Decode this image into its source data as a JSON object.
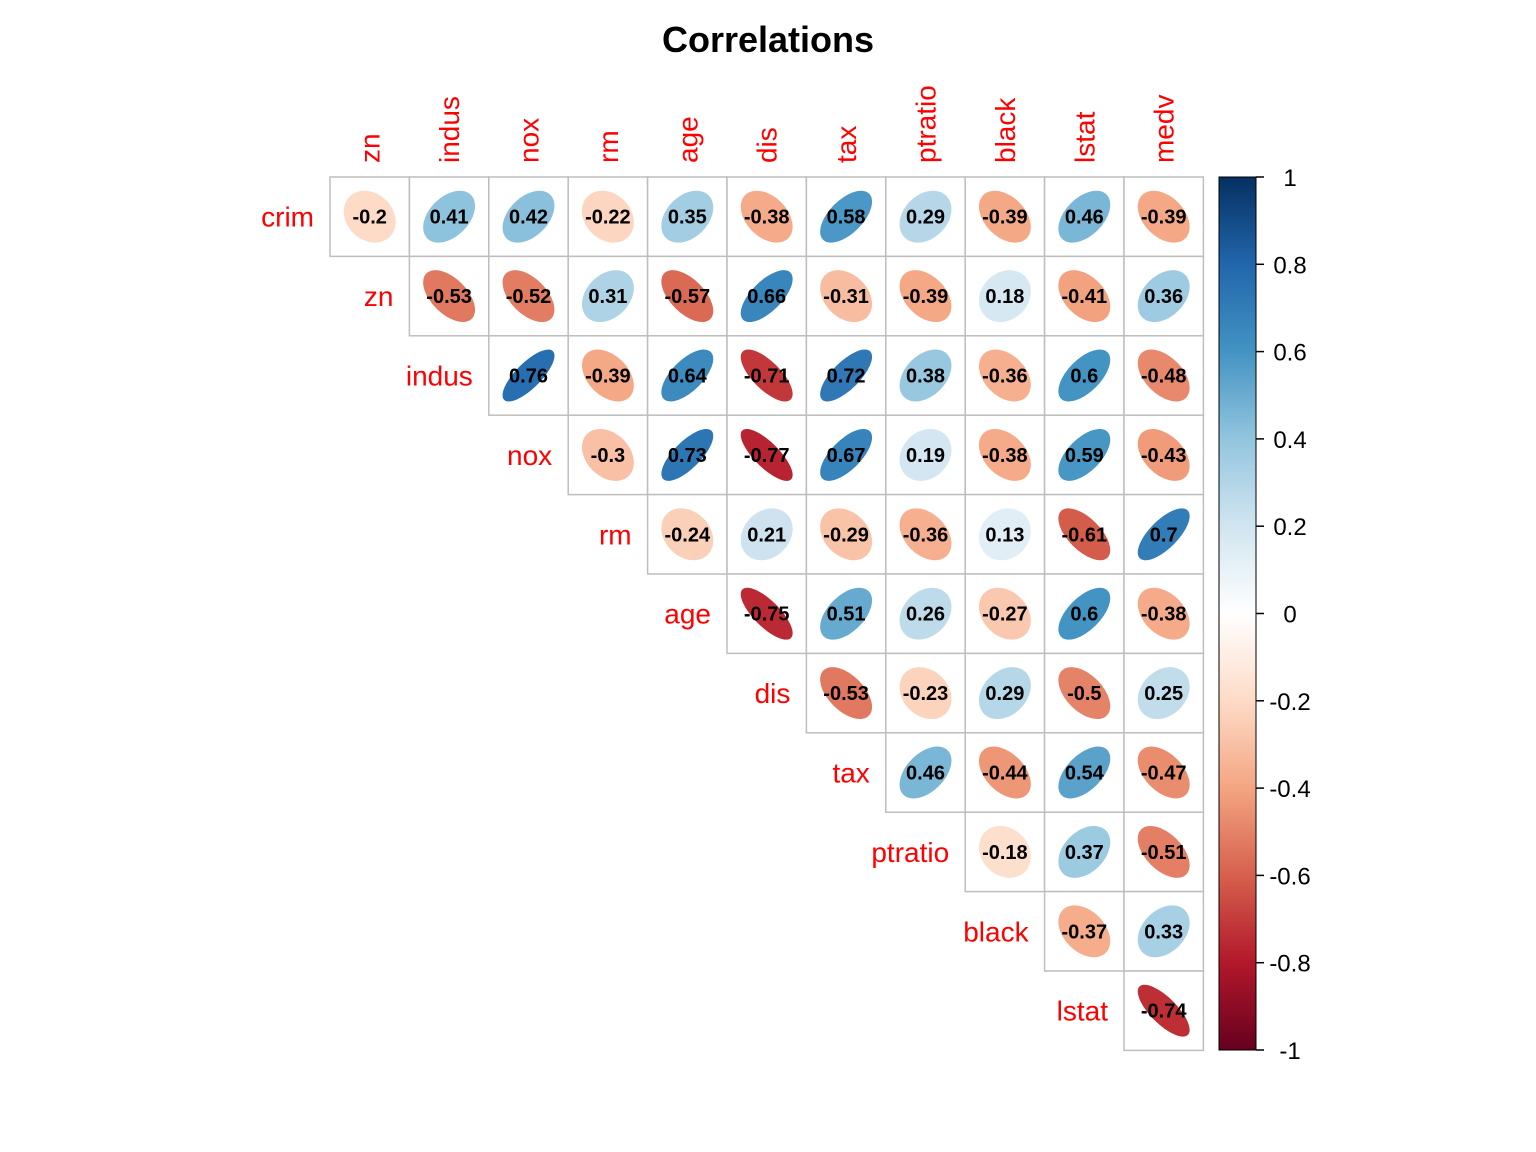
{
  "chart_data": {
    "type": "heatmap",
    "title": "Correlations",
    "row_labels": [
      "crim",
      "zn",
      "indus",
      "nox",
      "rm",
      "age",
      "dis",
      "tax",
      "ptratio",
      "black",
      "lstat"
    ],
    "col_labels": [
      "zn",
      "indus",
      "nox",
      "rm",
      "age",
      "dis",
      "tax",
      "ptratio",
      "black",
      "lstat",
      "medv"
    ],
    "variables": [
      "crim",
      "zn",
      "indus",
      "nox",
      "rm",
      "age",
      "dis",
      "tax",
      "ptratio",
      "black",
      "lstat",
      "medv"
    ],
    "layout": "upper-triangle",
    "glyph": "ellipse",
    "matrix": [
      [
        "-0.2",
        "0.41",
        "0.42",
        "-0.22",
        "0.35",
        "-0.38",
        "0.58",
        "0.29",
        "-0.39",
        "0.46",
        "-0.39"
      ],
      [
        "-0.53",
        "-0.52",
        "0.31",
        "-0.57",
        "0.66",
        "-0.31",
        "-0.39",
        "0.18",
        "-0.41",
        "0.36"
      ],
      [
        "0.76",
        "-0.39",
        "0.64",
        "-0.71",
        "0.72",
        "0.38",
        "-0.36",
        "0.6",
        "-0.48"
      ],
      [
        "-0.3",
        "0.73",
        "-0.77",
        "0.67",
        "0.19",
        "-0.38",
        "0.59",
        "-0.43"
      ],
      [
        "-0.24",
        "0.21",
        "-0.29",
        "-0.36",
        "0.13",
        "-0.61",
        "0.7"
      ],
      [
        "-0.75",
        "0.51",
        "0.26",
        "-0.27",
        "0.6",
        "-0.38"
      ],
      [
        "-0.53",
        "-0.23",
        "0.29",
        "-0.5",
        "0.25"
      ],
      [
        "0.46",
        "-0.44",
        "0.54",
        "-0.47"
      ],
      [
        "-0.18",
        "0.37",
        "-0.51"
      ],
      [
        "-0.37",
        "0.33"
      ],
      [
        "-0.74"
      ]
    ],
    "colorbar": {
      "range": [
        -1,
        1
      ],
      "ticks": [
        "1",
        "0.8",
        "0.6",
        "0.4",
        "0.2",
        "0",
        "-0.2",
        "-0.4",
        "-0.6",
        "-0.8",
        "-1"
      ],
      "colors": {
        "negative_end": "#67001F",
        "mid_negative": "#D6604D",
        "light_negative": "#FDDBC7",
        "zero": "#FFFFFF",
        "light_positive": "#D1E5F0",
        "mid_positive": "#4393C3",
        "positive_end": "#053061"
      }
    },
    "label_color": "#FF0000",
    "grid_color": "#BEBEBE"
  }
}
